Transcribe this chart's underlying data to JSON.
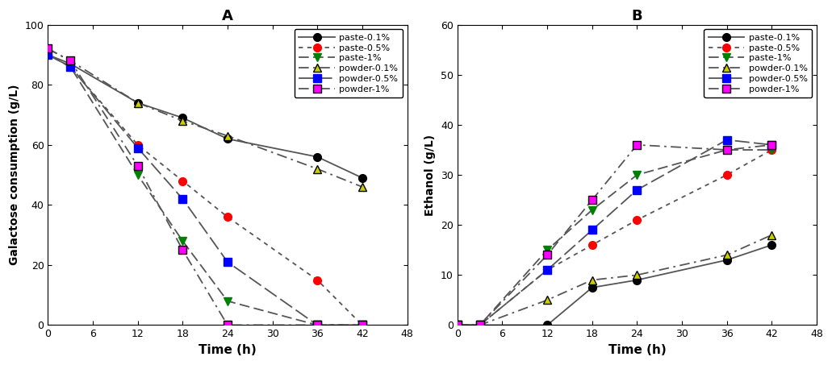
{
  "title_A": "A",
  "title_B": "B",
  "xlabel": "Time (h)",
  "ylabel_A": "Galactose consumption (g/L)",
  "ylabel_B": "Ethanol (g/L)",
  "xlim": [
    0,
    48
  ],
  "ylim_A": [
    0,
    100
  ],
  "ylim_B": [
    0,
    60
  ],
  "xticks": [
    0,
    6,
    12,
    18,
    24,
    30,
    36,
    42,
    48
  ],
  "yticks_A": [
    0,
    20,
    40,
    60,
    80,
    100
  ],
  "yticks_B": [
    0,
    10,
    20,
    30,
    40,
    50,
    60
  ],
  "line_color": "#555555",
  "series": [
    {
      "label": "paste-0.1%",
      "marker_color": "black",
      "marker": "o",
      "linestyle": "-",
      "x_A": [
        0,
        3,
        12,
        18,
        24,
        36,
        42
      ],
      "y_A": [
        90,
        87,
        74,
        69,
        62,
        56,
        49
      ],
      "x_B": [
        0,
        3,
        12,
        18,
        24,
        36,
        42
      ],
      "y_B": [
        0,
        0,
        0,
        7.5,
        9,
        13,
        16
      ]
    },
    {
      "label": "paste-0.5%",
      "marker_color": "red",
      "marker": "o",
      "linestyle": ":",
      "x_A": [
        0,
        3,
        12,
        18,
        24,
        36,
        42
      ],
      "y_A": [
        90,
        86,
        60,
        48,
        36,
        15,
        0
      ],
      "x_B": [
        0,
        3,
        12,
        18,
        24,
        36,
        42
      ],
      "y_B": [
        0,
        0,
        11,
        16,
        21,
        30,
        35
      ]
    },
    {
      "label": "paste-1%",
      "marker_color": "green",
      "marker": "v",
      "linestyle": "--",
      "x_A": [
        0,
        3,
        12,
        18,
        24,
        36,
        42
      ],
      "y_A": [
        90,
        86,
        50,
        28,
        8,
        0,
        0
      ],
      "x_B": [
        0,
        3,
        12,
        18,
        24,
        36,
        42
      ],
      "y_B": [
        0,
        0,
        15,
        23,
        30,
        35,
        35
      ]
    },
    {
      "label": "powder-0.1%",
      "marker_color": "#cccc00",
      "marker": "^",
      "linestyle": "-.",
      "dash_pattern": [
        6,
        2,
        1,
        2
      ],
      "x_A": [
        0,
        3,
        12,
        18,
        24,
        36,
        42
      ],
      "y_A": [
        92,
        88,
        74,
        68,
        63,
        52,
        46
      ],
      "x_B": [
        0,
        3,
        12,
        18,
        24,
        36,
        42
      ],
      "y_B": [
        0,
        0,
        5,
        9,
        10,
        14,
        18
      ]
    },
    {
      "label": "powder-0.5%",
      "marker_color": "blue",
      "marker": "s",
      "linestyle": "--",
      "dash_pattern": [
        8,
        3
      ],
      "x_A": [
        0,
        3,
        12,
        18,
        24,
        36,
        42
      ],
      "y_A": [
        90,
        86,
        59,
        42,
        21,
        0,
        0
      ],
      "x_B": [
        0,
        3,
        12,
        18,
        24,
        36,
        42
      ],
      "y_B": [
        0,
        0,
        11,
        19,
        27,
        37,
        36
      ]
    },
    {
      "label": "powder-1%",
      "marker_color": "magenta",
      "marker": "s",
      "linestyle": "-.",
      "dash_pattern": [
        6,
        2,
        1,
        2
      ],
      "x_A": [
        0,
        3,
        12,
        18,
        24,
        36,
        42
      ],
      "y_A": [
        92,
        88,
        53,
        25,
        0,
        0,
        0
      ],
      "x_B": [
        0,
        3,
        12,
        18,
        24,
        36,
        42
      ],
      "y_B": [
        0,
        0,
        14,
        25,
        36,
        35,
        36
      ]
    }
  ],
  "linewidth": 1.3,
  "markersize": 7
}
